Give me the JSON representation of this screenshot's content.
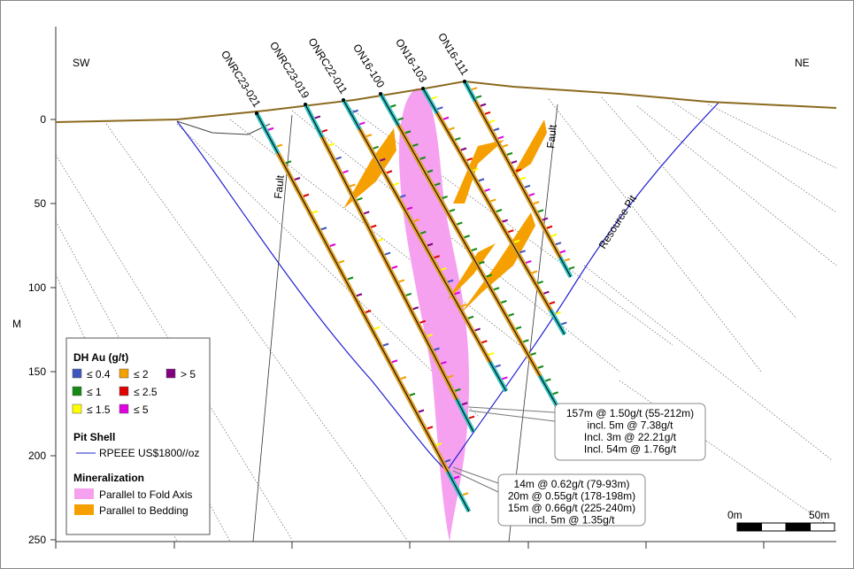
{
  "labels": {
    "sw": "SW",
    "ne": "NE",
    "depth_unit": "M"
  },
  "depth_axis": {
    "ticks": [
      0,
      50,
      100,
      150,
      200,
      250
    ]
  },
  "drill_holes": [
    {
      "label": "ONRC23-021"
    },
    {
      "label": "ONRC23-019"
    },
    {
      "label": "ONRC22-011"
    },
    {
      "label": "ON16-100"
    },
    {
      "label": "ON16-103"
    },
    {
      "label": "ON16-111"
    }
  ],
  "annotations": {
    "fault_left": "Fault",
    "fault_right": "Fault",
    "resource_pit": "Resource Pit"
  },
  "legend": {
    "title": "DH Au (g/t)",
    "grades": [
      {
        "label": "≤ 0.4",
        "color": "#3f55c0"
      },
      {
        "label": "≤ 1",
        "color": "#138a13"
      },
      {
        "label": "≤ 1.5",
        "color": "#ffff00"
      },
      {
        "label": "≤ 2",
        "color": "#f5a000"
      },
      {
        "label": "≤ 2.5",
        "color": "#e00000"
      },
      {
        "label": "≤ 5",
        "color": "#e000e0"
      },
      {
        "label": "> 5",
        "color": "#800080"
      }
    ],
    "pit_shell_title": "Pit Shell",
    "pit_shell_item": "RPEEE US$1800//oz",
    "mineralization_title": "Mineralization",
    "mineralization_items": [
      {
        "label": "Parallel to Fold Axis",
        "color": "#f6a0f0"
      },
      {
        "label": "Parallel to Bedding",
        "color": "#f5a000"
      }
    ]
  },
  "callouts": [
    {
      "lines": [
        "157m @ 1.50g/t (55-212m)",
        "incl. 5m @ 7.38g/t",
        "Incl. 3m @ 22.21g/t",
        "Incl. 54m @ 1.76g/t"
      ]
    },
    {
      "lines": [
        "14m @ 0.62g/t (79-93m)",
        "20m @ 0.55g/t (178-198m)",
        "15m @ 0.66g/t (225-240m)",
        "incl. 5m @ 1.35g/t"
      ]
    }
  ],
  "scale_bar": {
    "start": "0m",
    "end": "50m"
  }
}
